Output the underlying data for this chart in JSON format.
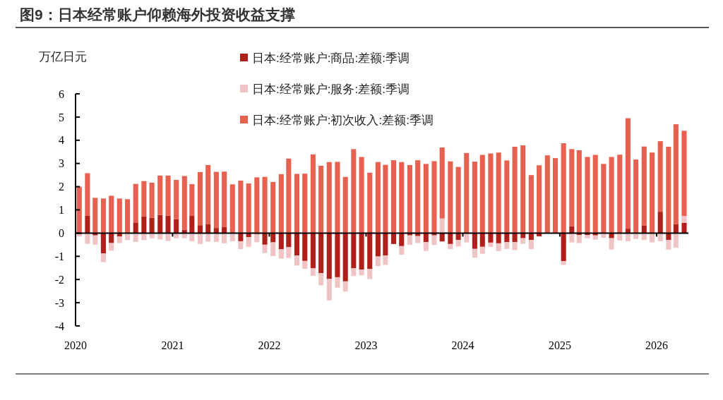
{
  "chart_data": {
    "type": "bar",
    "stacked": true,
    "title": "图9：日本经常账户仰赖海外投资收益支撑",
    "ylabel": "万亿日元",
    "x": [
      "2020-01-15",
      "2020-02-15",
      "2020-03-15",
      "2020-04-15",
      "2020-05-15",
      "2020-06-15",
      "2020-07-15",
      "2020-08-15",
      "2020-09-15",
      "2020-10-15",
      "2020-11-15",
      "2020-12-15",
      "2021-01-15",
      "2021-02-15",
      "2021-03-15",
      "2021-04-15",
      "2021-05-15",
      "2021-06-15",
      "2021-07-15",
      "2021-08-15",
      "2021-09-15",
      "2021-10-15",
      "2021-11-15",
      "2021-12-15",
      "2022-01-15",
      "2022-02-15",
      "2022-03-15",
      "2022-04-15",
      "2022-05-15",
      "2022-06-15",
      "2022-07-15",
      "2022-08-15",
      "2022-09-15",
      "2022-10-15",
      "2022-11-15",
      "2022-12-15",
      "2023-01-15",
      "2023-02-15",
      "2023-03-15",
      "2023-04-15",
      "2023-05-15",
      "2023-06-15",
      "2023-07-15",
      "2023-08-15",
      "2023-09-15",
      "2023-10-15",
      "2023-11-15",
      "2023-12-15",
      "2024-01-15",
      "2024-02-15",
      "2024-03-15",
      "2024-04-15",
      "2024-05-15",
      "2024-06-15",
      "2024-07-15",
      "2024-08-15",
      "2024-09-15",
      "2024-10-15",
      "2024-11-15",
      "2024-12-15",
      "2025-01-15",
      "2025-02-15",
      "2025-03-15",
      "2025-04-15",
      "2025-05-15",
      "2025-06-15",
      "2025-07-15",
      "2025-08-15",
      "2025-09-15",
      "2025-10-15",
      "2025-11-15",
      "2025-12-15",
      "2026-01-15",
      "2026-02-15",
      "2026-03-15",
      "2026-04-15"
    ],
    "series": [
      {
        "name": "日本:经常账户:商品:差额:季调",
        "color": "#b01f1a",
        "values": [
          -0.05,
          0.74,
          -0.1,
          -0.88,
          -0.43,
          -0.15,
          null,
          0.46,
          0.72,
          0.66,
          0.78,
          0.75,
          0.6,
          0.14,
          0.74,
          0.34,
          0.38,
          0.22,
          0.27,
          0,
          -0.35,
          -0.18,
          -0.04,
          -0.5,
          -0.4,
          -0.7,
          -0.61,
          -0.96,
          -1.2,
          -1.52,
          -1.72,
          -1.98,
          -1.9,
          -2.08,
          -1.52,
          -1.57,
          -1.55,
          -1.01,
          -0.97,
          -0.47,
          -0.56,
          -0.1,
          -0.13,
          -0.39,
          -0.1,
          -0.36,
          -0.47,
          -0.3,
          null,
          -0.68,
          -0.59,
          -0.41,
          -0.44,
          -0.39,
          -0.39,
          -0.22,
          -0.3,
          -0.14,
          null,
          null,
          -1.21,
          0.3,
          -0.08,
          -0.08,
          -0.1,
          0,
          -0.22,
          0,
          0.19,
          0,
          0.32,
          0,
          0.92,
          -0.3,
          0.38,
          0.44
        ]
      },
      {
        "name": "日本:经常账户:服务:差额:季调",
        "color": "#f0c4c4",
        "values": [
          -0.1,
          -0.46,
          -0.4,
          -0.37,
          -0.33,
          -0.28,
          -0.3,
          -0.38,
          -0.3,
          -0.22,
          -0.27,
          -0.34,
          -0.22,
          -0.22,
          -0.35,
          -0.47,
          -0.37,
          -0.38,
          -0.44,
          -0.35,
          -0.34,
          -0.41,
          -0.35,
          -0.36,
          -0.59,
          -0.4,
          -0.46,
          -0.44,
          -0.34,
          -0.32,
          -0.53,
          -0.92,
          -0.45,
          -0.44,
          -0.33,
          -0.25,
          -0.43,
          -0.41,
          -0.4,
          null,
          -0.37,
          -0.41,
          -0.3,
          -0.38,
          -0.41,
          0.63,
          -0.22,
          -0.28,
          -0.4,
          -0.38,
          -0.3,
          -0.18,
          -0.34,
          -0.29,
          -0.34,
          -0.24,
          -0.39,
          0,
          0,
          0,
          -0.16,
          -0.4,
          -0.35,
          -0.14,
          -0.18,
          -0.2,
          -0.49,
          -0.32,
          -0.35,
          -0.25,
          -0.3,
          -0.4,
          -0.35,
          -0.41,
          -0.63,
          0.3
        ]
      },
      {
        "name": "日本:经常账户:初次收入:差额:季调",
        "color": "#e8604f",
        "values": [
          2.0,
          1.84,
          1.52,
          1.49,
          1.61,
          1.49,
          1.46,
          1.66,
          1.52,
          1.51,
          1.7,
          1.73,
          1.69,
          2.32,
          1.37,
          2.29,
          2.55,
          2.42,
          2.38,
          2.1,
          2.26,
          2.14,
          2.4,
          2.42,
          2.2,
          2.54,
          3.21,
          2.55,
          2.56,
          3.39,
          2.9,
          3.06,
          3.07,
          2.42,
          3.62,
          3.28,
          2.6,
          3.06,
          2.94,
          3.14,
          3.06,
          2.93,
          3.14,
          2.98,
          3.1,
          3.06,
          3.09,
          2.85,
          3.45,
          3.08,
          3.37,
          3.43,
          3.47,
          3.13,
          3.72,
          3.78,
          2.5,
          2.92,
          3.35,
          3.23,
          3.87,
          3.32,
          3.57,
          3.28,
          3.37,
          2.98,
          3.28,
          3.38,
          4.76,
          3.17,
          3.41,
          3.47,
          3.04,
          3.72,
          4.31,
          3.67
        ]
      }
    ],
    "xlim": [
      "2020-01-01",
      "2026-05-01"
    ],
    "xticks": [
      "2020",
      "2021",
      "2022",
      "2023",
      "2024",
      "2025",
      "2026"
    ],
    "ylim": [
      -4,
      6
    ],
    "yticks": [
      -4,
      -3,
      -2,
      -1,
      0,
      1,
      2,
      3,
      4,
      5,
      6
    ],
    "legend": "top"
  }
}
